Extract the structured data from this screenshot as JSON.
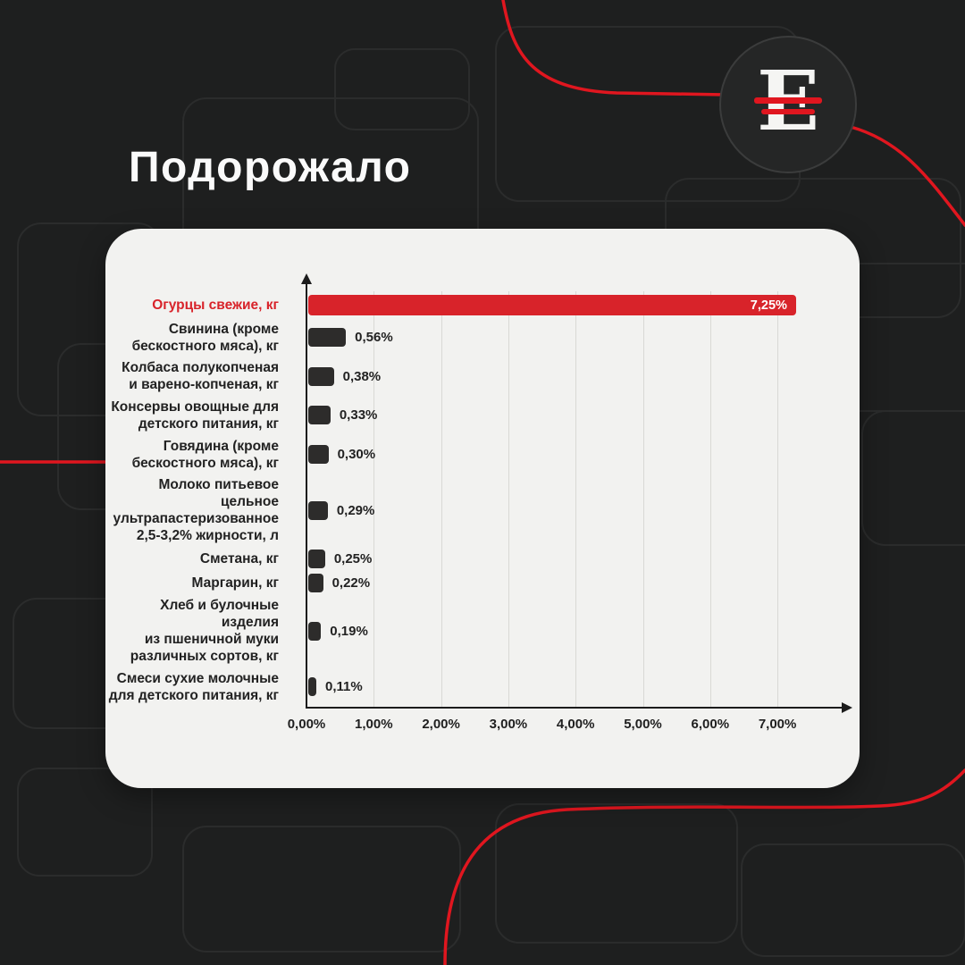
{
  "page": {
    "title": "Подорожало"
  },
  "logo": {
    "letter": "E"
  },
  "chart_data": {
    "type": "bar",
    "orientation": "horizontal",
    "title": "Подорожало",
    "categories": [
      "Огурцы свежие, кг",
      "Свинина (кроме\nбескостного мяса), кг",
      "Колбаса полукопченая\nи варено-копченая, кг",
      "Консервы овощные для\nдетского питания, кг",
      "Говядина (кроме\nбескостного мяса), кг",
      "Молоко питьевое цельное\nультрапастеризованное\n2,5-3,2% жирности, л",
      "Сметана, кг",
      "Маргарин, кг",
      "Хлеб и булочные изделия\nиз пшеничной муки\nразличных сортов, кг",
      "Смеси сухие молочные\nдля детского питания, кг"
    ],
    "values": [
      7.25,
      0.56,
      0.38,
      0.33,
      0.3,
      0.29,
      0.25,
      0.22,
      0.19,
      0.11
    ],
    "value_labels": [
      "7,25%",
      "0,56%",
      "0,38%",
      "0,33%",
      "0,30%",
      "0,29%",
      "0,25%",
      "0,22%",
      "0,19%",
      "0,11%"
    ],
    "x_ticks": [
      "0,00%",
      "1,00%",
      "2,00%",
      "3,00%",
      "4,00%",
      "5,00%",
      "6,00%",
      "7,00%"
    ],
    "x_tick_values": [
      0,
      1,
      2,
      3,
      4,
      5,
      6,
      7
    ],
    "xlim": [
      0,
      7.55
    ],
    "highlight_index": 0,
    "grid": true,
    "legend": false,
    "colors": {
      "bar": "#2d2c2b",
      "highlight": "#d8232a",
      "grid": "#d9d9d5",
      "axis": "#1c1c1c",
      "background_card": "#f2f2f0",
      "background_page": "#1e1f1f",
      "accent_line": "#e0161f"
    }
  }
}
